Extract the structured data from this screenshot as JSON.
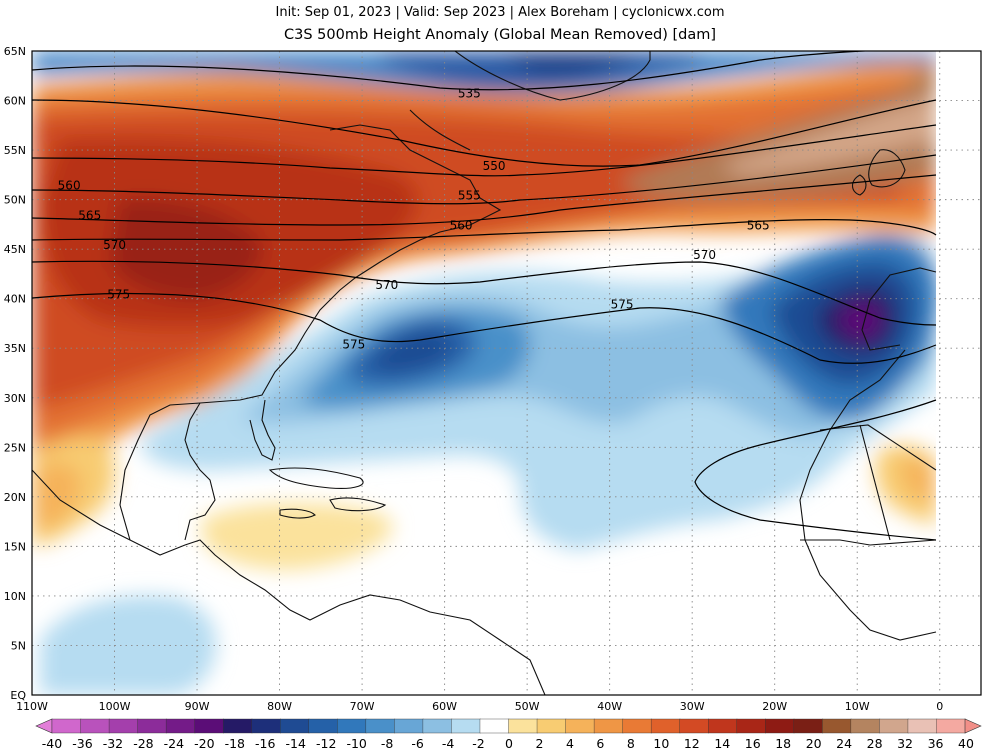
{
  "header": {
    "line1": "Init: Sep 01, 2023 | Valid: Sep 2023 | Alex Boreham | cyclonicwx.com",
    "line2": "C3S 500mb Height Anomaly (Global Mean Removed) [dam]"
  },
  "map": {
    "projection": "equirectangular",
    "lon_range": [
      -110,
      5
    ],
    "lat_range": [
      0,
      65
    ],
    "lat_labels": [
      "65N",
      "60N",
      "55N",
      "50N",
      "45N",
      "40N",
      "35N",
      "30N",
      "25N",
      "20N",
      "15N",
      "10N",
      "5N",
      "EQ"
    ],
    "lon_labels": [
      "110W",
      "100W",
      "90W",
      "80W",
      "70W",
      "60W",
      "50W",
      "40W",
      "30W",
      "20W",
      "10W",
      "0"
    ],
    "grid": "dotted",
    "contour_labels": [
      {
        "text": "535",
        "lon": -57,
        "lat": 60.7
      },
      {
        "text": "550",
        "lon": -54,
        "lat": 53.4
      },
      {
        "text": "555",
        "lon": -57,
        "lat": 50.4
      },
      {
        "text": "560",
        "lon": -105.5,
        "lat": 51.4
      },
      {
        "text": "560",
        "lon": -58,
        "lat": 47.4
      },
      {
        "text": "565",
        "lon": -103,
        "lat": 48.4
      },
      {
        "text": "565",
        "lon": -22,
        "lat": 47.4
      },
      {
        "text": "570",
        "lon": -100,
        "lat": 45.4
      },
      {
        "text": "570",
        "lon": -28.5,
        "lat": 44.4
      },
      {
        "text": "570",
        "lon": -67,
        "lat": 41.4
      },
      {
        "text": "575",
        "lon": -99.5,
        "lat": 40.4
      },
      {
        "text": "575",
        "lon": -71,
        "lat": 35.4
      },
      {
        "text": "575",
        "lon": -38.5,
        "lat": 39.4
      }
    ]
  },
  "colorbar": {
    "labels": [
      "-40",
      "-36",
      "-32",
      "-28",
      "-24",
      "-20",
      "-18",
      "-16",
      "-14",
      "-12",
      "-10",
      "-8",
      "-6",
      "-4",
      "-2",
      "0",
      "2",
      "4",
      "6",
      "8",
      "10",
      "12",
      "14",
      "16",
      "18",
      "20",
      "24",
      "28",
      "32",
      "36",
      "40"
    ],
    "colors": [
      "#e27ed8",
      "#d067cc",
      "#b952bc",
      "#a43fac",
      "#8c2c9a",
      "#741b88",
      "#5b0d77",
      "#251a66",
      "#1d2f7a",
      "#1f4b93",
      "#2561a8",
      "#3178bb",
      "#4a90c9",
      "#68a6d6",
      "#8cbfe2",
      "#b6dcf1",
      "#ffffff",
      "#fbe29c",
      "#f8cc72",
      "#f5b25a",
      "#ef9645",
      "#e97a35",
      "#e0612b",
      "#d34a24",
      "#c0361d",
      "#a92617",
      "#8e1b14",
      "#7a1f15",
      "#98582f",
      "#b48460",
      "#d1a68d",
      "#e9c1b5",
      "#f4a9a1",
      "#f28f88"
    ]
  }
}
